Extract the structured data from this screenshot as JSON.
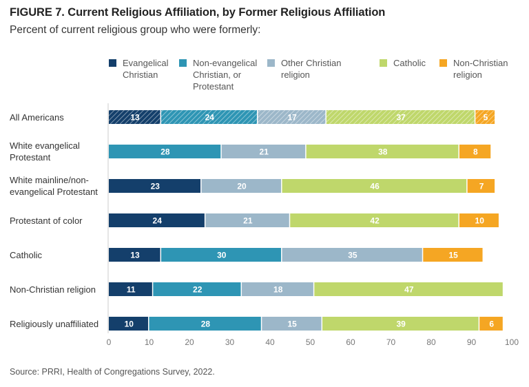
{
  "header": {
    "title": "FIGURE 7.  Current Religious Affiliation, by Former Religious Affiliation",
    "subtitle": "Percent of current religious group who were formerly:"
  },
  "source": "Source: PRRI, Health of Congregations Survey, 2022.",
  "chart_data": {
    "type": "bar",
    "orientation": "horizontal",
    "stacked": true,
    "title": "FIGURE 7.  Current Religious Affiliation, by Former Religious Affiliation",
    "subtitle": "Percent of current religious group who were formerly:",
    "xlabel": "",
    "ylabel": "",
    "xlim": [
      0,
      100
    ],
    "xticks": [
      0,
      10,
      20,
      30,
      40,
      50,
      60,
      70,
      80,
      90,
      100
    ],
    "grid": false,
    "legend_position": "top",
    "categories": [
      "All Americans",
      "White evangelical\nProtestant",
      "White mainline/non-\nevangelical Protestant",
      "Protestant of color",
      "Catholic",
      "Non-Christian religion",
      "Religiously unaffiliated"
    ],
    "hatched_categories": [
      "All Americans"
    ],
    "series": [
      {
        "name": "Evangelical\nChristian",
        "color": "#143f6b",
        "values": [
          13,
          null,
          23,
          24,
          13,
          11,
          10
        ]
      },
      {
        "name": "Non-evangelical\nChristian, or\nProtestant",
        "color": "#2e95b4",
        "values": [
          24,
          28,
          null,
          null,
          30,
          22,
          28
        ]
      },
      {
        "name": "Other Christian\nreligion",
        "color": "#9cb7c9",
        "values": [
          17,
          21,
          20,
          21,
          35,
          18,
          15
        ]
      },
      {
        "name": "Catholic",
        "color": "#bfd76b",
        "values": [
          37,
          38,
          46,
          42,
          null,
          47,
          39
        ]
      },
      {
        "name": "Non-Christian\nreligion",
        "color": "#f5a623",
        "values": [
          5,
          8,
          7,
          10,
          15,
          null,
          6
        ]
      }
    ]
  }
}
